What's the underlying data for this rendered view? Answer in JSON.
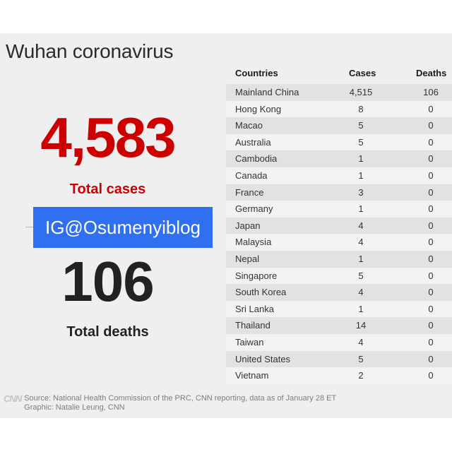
{
  "header": {
    "title": "Wuhan coronavirus"
  },
  "totals": {
    "cases_value": "4,583",
    "cases_label": "Total cases",
    "deaths_value": "106",
    "deaths_label": "Total deaths"
  },
  "watermark": {
    "text": "IG@Osumenyiblog",
    "color": "#2f6ff0"
  },
  "colors": {
    "cases": "#cc0000",
    "deaths": "#222222",
    "background": "#efefef"
  },
  "chart_data": {
    "type": "table",
    "title": "Wuhan coronavirus",
    "columns": [
      "Countries",
      "Cases",
      "Deaths"
    ],
    "rows": [
      [
        "Mainland China",
        "4,515",
        "106"
      ],
      [
        "Hong Kong",
        "8",
        "0"
      ],
      [
        "Macao",
        "5",
        "0"
      ],
      [
        "Australia",
        "5",
        "0"
      ],
      [
        "Cambodia",
        "1",
        "0"
      ],
      [
        "Canada",
        "1",
        "0"
      ],
      [
        "France",
        "3",
        "0"
      ],
      [
        "Germany",
        "1",
        "0"
      ],
      [
        "Japan",
        "4",
        "0"
      ],
      [
        "Malaysia",
        "4",
        "0"
      ],
      [
        "Nepal",
        "1",
        "0"
      ],
      [
        "Singapore",
        "5",
        "0"
      ],
      [
        "South Korea",
        "4",
        "0"
      ],
      [
        "Sri Lanka",
        "1",
        "0"
      ],
      [
        "Thailand",
        "14",
        "0"
      ],
      [
        "Taiwan",
        "4",
        "0"
      ],
      [
        "United States",
        "5",
        "0"
      ],
      [
        "Vietnam",
        "2",
        "0"
      ]
    ]
  },
  "footer": {
    "logo": "CNN",
    "source": "Source: National Health Commission of the PRC, CNN reporting, data as of January 28 ET",
    "graphic": "Graphic: Natalie Leung, CNN"
  }
}
